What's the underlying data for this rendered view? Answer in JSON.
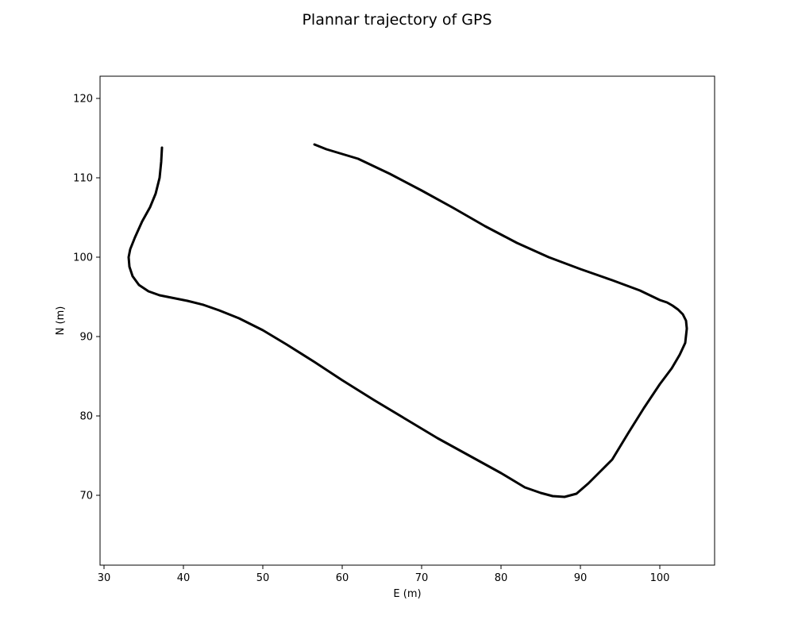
{
  "chart_data": {
    "type": "line",
    "title": "Plannar trajectory of GPS",
    "xlabel": "E (m)",
    "ylabel": "N (m)",
    "xlim": [
      29.5,
      106.9
    ],
    "ylim": [
      61.2,
      122.8
    ],
    "xticks": [
      30,
      40,
      50,
      60,
      70,
      80,
      90,
      100
    ],
    "yticks": [
      70,
      80,
      90,
      100,
      110,
      120
    ],
    "grid": false,
    "legend": "none",
    "series": [
      {
        "color": "#000000",
        "x": [
          37.3,
          37.2,
          37.0,
          36.5,
          35.8,
          34.8,
          33.9,
          33.3,
          33.1,
          33.2,
          33.6,
          34.4,
          35.6,
          37.0,
          38.5,
          40.5,
          42.5,
          44.5,
          47.0,
          50.0,
          53.0,
          56.5,
          60.0,
          64.0,
          68.0,
          72.0,
          76.0,
          80.0,
          83.0,
          85.0,
          86.5,
          88.0,
          89.5,
          91.0,
          92.5,
          94.0,
          96.0,
          98.0,
          100.0,
          101.5,
          102.5,
          103.2,
          103.4,
          103.3,
          102.9,
          102.3,
          101.6,
          100.9,
          100.0,
          97.5,
          94.0,
          90.0,
          86.0,
          82.0,
          78.0,
          74.0,
          70.0,
          66.0,
          62.0,
          58.0,
          56.5
        ],
        "y": [
          113.8,
          112.0,
          110.0,
          108.0,
          106.3,
          104.5,
          102.5,
          101.0,
          100.0,
          98.8,
          97.6,
          96.5,
          95.7,
          95.2,
          94.9,
          94.5,
          94.0,
          93.3,
          92.3,
          90.8,
          89.0,
          86.8,
          84.5,
          82.0,
          79.6,
          77.2,
          75.0,
          72.8,
          71.0,
          70.3,
          69.9,
          69.8,
          70.2,
          71.5,
          73.0,
          74.5,
          77.8,
          81.0,
          84.0,
          86.0,
          87.7,
          89.2,
          91.0,
          92.0,
          92.8,
          93.4,
          93.9,
          94.3,
          94.6,
          95.8,
          97.1,
          98.5,
          100.0,
          101.8,
          103.9,
          106.2,
          108.4,
          110.5,
          112.4,
          113.6,
          114.2
        ]
      }
    ]
  }
}
